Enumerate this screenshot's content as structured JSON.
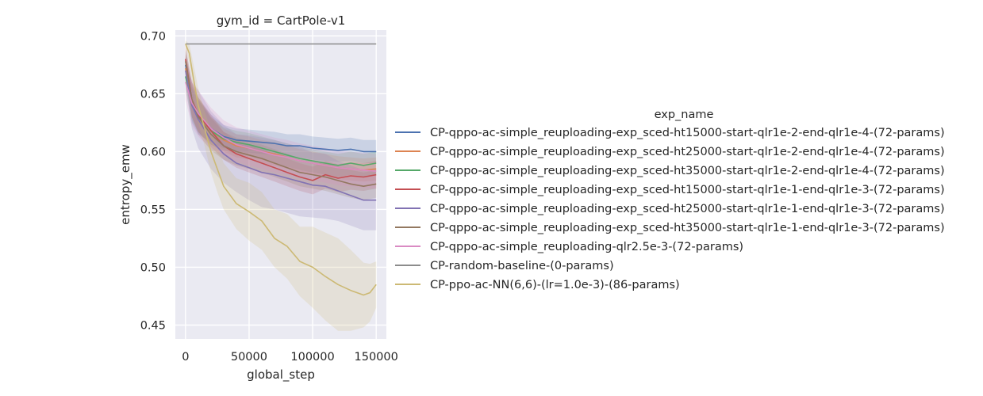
{
  "chart_data": {
    "type": "line",
    "title": "gym_id = CartPole-v1",
    "xlabel": "global_step",
    "ylabel": "entropy_emw",
    "xlim": [
      -8000,
      158000
    ],
    "ylim": [
      0.438,
      0.705
    ],
    "xticks": [
      0,
      50000,
      100000,
      150000
    ],
    "xtick_labels": [
      "0",
      "50000",
      "100000",
      "150000"
    ],
    "yticks": [
      0.45,
      0.5,
      0.55,
      0.6,
      0.65,
      0.7
    ],
    "ytick_labels": [
      "0.45",
      "0.50",
      "0.55",
      "0.60",
      "0.65",
      "0.70"
    ],
    "grid": true,
    "legend_title": "exp_name",
    "legend_position": "right",
    "series": [
      {
        "name": "CP-qppo-ac-simple_reuploading-exp_sced-ht15000-start-qlr1e-2-end-qlr1e-4-(72-params)",
        "color": "#4c72b0",
        "x": [
          0,
          5000,
          10000,
          20000,
          30000,
          40000,
          50000,
          60000,
          70000,
          80000,
          90000,
          100000,
          110000,
          120000,
          130000,
          140000,
          150000
        ],
        "y": [
          0.675,
          0.64,
          0.63,
          0.62,
          0.613,
          0.61,
          0.609,
          0.608,
          0.607,
          0.605,
          0.605,
          0.603,
          0.602,
          0.601,
          0.602,
          0.6,
          0.6
        ],
        "band": [
          0.012,
          0.015,
          0.015,
          0.012,
          0.01,
          0.01,
          0.01,
          0.01,
          0.01,
          0.01,
          0.01,
          0.01,
          0.01,
          0.01,
          0.01,
          0.01,
          0.01
        ]
      },
      {
        "name": "CP-qppo-ac-simple_reuploading-exp_sced-ht25000-start-qlr1e-2-end-qlr1e-4-(72-params)",
        "color": "#dd8452",
        "x": [
          0,
          5000,
          10000,
          20000,
          30000,
          40000,
          50000,
          60000,
          70000,
          80000,
          90000,
          100000,
          110000,
          120000,
          130000,
          140000,
          150000
        ],
        "y": [
          0.672,
          0.645,
          0.632,
          0.618,
          0.61,
          0.605,
          0.603,
          0.6,
          0.598,
          0.595,
          0.592,
          0.59,
          0.588,
          0.586,
          0.585,
          0.584,
          0.585
        ],
        "band": [
          0.012,
          0.015,
          0.015,
          0.012,
          0.01,
          0.01,
          0.01,
          0.01,
          0.01,
          0.01,
          0.01,
          0.01,
          0.01,
          0.01,
          0.01,
          0.01,
          0.01
        ]
      },
      {
        "name": "CP-qppo-ac-simple_reuploading-exp_sced-ht35000-start-qlr1e-2-end-qlr1e-4-(72-params)",
        "color": "#55a868",
        "x": [
          0,
          5000,
          10000,
          20000,
          30000,
          40000,
          50000,
          60000,
          70000,
          80000,
          90000,
          100000,
          110000,
          120000,
          130000,
          140000,
          150000
        ],
        "y": [
          0.665,
          0.642,
          0.632,
          0.618,
          0.611,
          0.608,
          0.606,
          0.603,
          0.6,
          0.597,
          0.594,
          0.592,
          0.59,
          0.588,
          0.59,
          0.588,
          0.59
        ],
        "band": [
          0.012,
          0.015,
          0.015,
          0.012,
          0.01,
          0.01,
          0.01,
          0.01,
          0.01,
          0.01,
          0.01,
          0.01,
          0.01,
          0.01,
          0.01,
          0.01,
          0.01
        ]
      },
      {
        "name": "CP-qppo-ac-simple_reuploading-exp_sced-ht15000-start-qlr1e-1-end-qlr1e-3-(72-params)",
        "color": "#c44e52",
        "x": [
          0,
          5000,
          10000,
          20000,
          30000,
          40000,
          50000,
          60000,
          70000,
          80000,
          90000,
          100000,
          110000,
          120000,
          130000,
          140000,
          150000
        ],
        "y": [
          0.68,
          0.645,
          0.632,
          0.618,
          0.605,
          0.598,
          0.594,
          0.59,
          0.586,
          0.582,
          0.578,
          0.575,
          0.58,
          0.577,
          0.579,
          0.578,
          0.58
        ],
        "band": [
          0.012,
          0.015,
          0.015,
          0.014,
          0.012,
          0.012,
          0.012,
          0.012,
          0.012,
          0.012,
          0.012,
          0.012,
          0.012,
          0.012,
          0.012,
          0.012,
          0.012
        ]
      },
      {
        "name": "CP-qppo-ac-simple_reuploading-exp_sced-ht25000-start-qlr1e-1-end-qlr1e-3-(72-params)",
        "color": "#8172b3",
        "x": [
          0,
          5000,
          10000,
          20000,
          30000,
          40000,
          50000,
          60000,
          70000,
          80000,
          90000,
          100000,
          110000,
          120000,
          130000,
          140000,
          150000
        ],
        "y": [
          0.67,
          0.64,
          0.628,
          0.61,
          0.598,
          0.59,
          0.586,
          0.582,
          0.58,
          0.577,
          0.574,
          0.571,
          0.57,
          0.566,
          0.562,
          0.558,
          0.558
        ],
        "band": [
          0.012,
          0.02,
          0.025,
          0.025,
          0.025,
          0.025,
          0.028,
          0.03,
          0.03,
          0.03,
          0.03,
          0.028,
          0.028,
          0.026,
          0.026,
          0.026,
          0.026
        ]
      },
      {
        "name": "CP-qppo-ac-simple_reuploading-exp_sced-ht35000-start-qlr1e-1-end-qlr1e-3-(72-params)",
        "color": "#937860",
        "x": [
          0,
          5000,
          10000,
          20000,
          30000,
          40000,
          50000,
          60000,
          70000,
          80000,
          90000,
          100000,
          110000,
          120000,
          130000,
          140000,
          150000
        ],
        "y": [
          0.678,
          0.645,
          0.63,
          0.615,
          0.605,
          0.6,
          0.597,
          0.594,
          0.59,
          0.586,
          0.582,
          0.58,
          0.578,
          0.575,
          0.572,
          0.57,
          0.572
        ],
        "band": [
          0.012,
          0.015,
          0.015,
          0.014,
          0.012,
          0.012,
          0.012,
          0.012,
          0.012,
          0.012,
          0.012,
          0.012,
          0.012,
          0.012,
          0.012,
          0.012,
          0.012
        ]
      },
      {
        "name": "CP-qppo-ac-simple_reuploading-qlr2.5e-3-(72-params)",
        "color": "#da8bc3",
        "x": [
          0,
          5000,
          10000,
          20000,
          30000,
          40000,
          50000,
          60000,
          70000,
          80000,
          90000,
          100000,
          110000,
          120000,
          130000,
          140000,
          150000
        ],
        "y": [
          0.66,
          0.642,
          0.633,
          0.62,
          0.612,
          0.606,
          0.603,
          0.6,
          0.597,
          0.595,
          0.592,
          0.59,
          0.588,
          0.586,
          0.585,
          0.584,
          0.583
        ],
        "band": [
          0.015,
          0.02,
          0.02,
          0.018,
          0.015,
          0.015,
          0.015,
          0.015,
          0.015,
          0.015,
          0.015,
          0.015,
          0.015,
          0.015,
          0.015,
          0.015,
          0.015
        ]
      },
      {
        "name": "CP-random-baseline-(0-params)",
        "color": "#8c8c8c",
        "x": [
          0,
          150000
        ],
        "y": [
          0.693,
          0.693
        ],
        "band": [
          0,
          0
        ]
      },
      {
        "name": "CP-ppo-ac-NN(6,6)-(lr=1.0e-3)-(86-params)",
        "color": "#ccb974",
        "x": [
          0,
          3000,
          6000,
          10000,
          15000,
          20000,
          25000,
          30000,
          40000,
          50000,
          60000,
          70000,
          80000,
          90000,
          100000,
          110000,
          120000,
          130000,
          140000,
          145000,
          150000
        ],
        "y": [
          0.693,
          0.685,
          0.665,
          0.64,
          0.62,
          0.6,
          0.585,
          0.57,
          0.555,
          0.548,
          0.54,
          0.525,
          0.518,
          0.505,
          0.5,
          0.492,
          0.485,
          0.48,
          0.476,
          0.478,
          0.485
        ],
        "band": [
          0.003,
          0.008,
          0.012,
          0.015,
          0.015,
          0.018,
          0.02,
          0.02,
          0.022,
          0.025,
          0.025,
          0.025,
          0.028,
          0.03,
          0.035,
          0.038,
          0.04,
          0.035,
          0.028,
          0.025,
          0.02
        ]
      }
    ]
  }
}
